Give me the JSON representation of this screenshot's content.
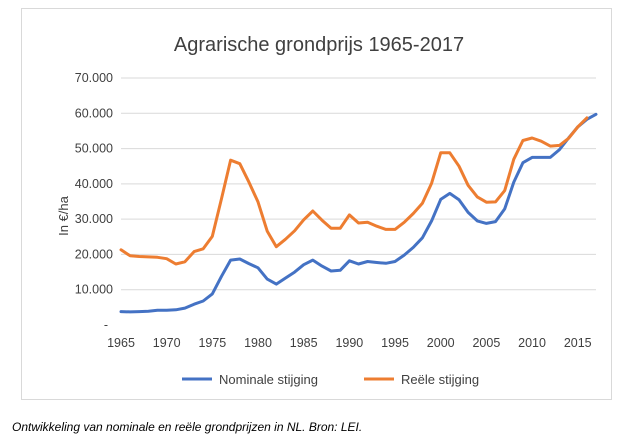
{
  "caption": "Ontwikkeling van nominale en reële grondprijzen in NL. Bron: LEI.",
  "chart_data": {
    "type": "line",
    "title": "Agrarische grondprijs 1965-2017",
    "xlabel": "",
    "ylabel": "In €/ha",
    "xlim": [
      1965,
      2017
    ],
    "ylim": [
      0,
      70000
    ],
    "x_ticks": [
      "1965",
      "1970",
      "1975",
      "1980",
      "1985",
      "1990",
      "1995",
      "2000",
      "2005",
      "2010",
      "2015"
    ],
    "x_tick_values": [
      1965,
      1970,
      1975,
      1980,
      1985,
      1990,
      1995,
      2000,
      2005,
      2010,
      2015
    ],
    "y_ticks": [
      "-",
      "10.000",
      "20.000",
      "30.000",
      "40.000",
      "50.000",
      "60.000",
      "70.000"
    ],
    "y_tick_values": [
      0,
      10000,
      20000,
      30000,
      40000,
      50000,
      60000,
      70000
    ],
    "grid": "horizontal",
    "legend_position": "bottom",
    "x": [
      1965,
      1966,
      1967,
      1968,
      1969,
      1970,
      1971,
      1972,
      1973,
      1974,
      1975,
      1976,
      1977,
      1978,
      1979,
      1980,
      1981,
      1982,
      1983,
      1984,
      1985,
      1986,
      1987,
      1988,
      1989,
      1990,
      1991,
      1992,
      1993,
      1994,
      1995,
      1996,
      1997,
      1998,
      1999,
      2000,
      2001,
      2002,
      2003,
      2004,
      2005,
      2006,
      2007,
      2008,
      2009,
      2010,
      2011,
      2012,
      2013,
      2014,
      2015,
      2016,
      2017
    ],
    "series": [
      {
        "name": "Nominale stijging",
        "color": "#4472c4",
        "values": [
          3800,
          3700,
          3800,
          3900,
          4200,
          4200,
          4300,
          4800,
          5900,
          6800,
          8800,
          13800,
          18400,
          18700,
          17400,
          16200,
          13000,
          11600,
          13300,
          15000,
          17100,
          18400,
          16700,
          15300,
          15500,
          18200,
          17300,
          18000,
          17700,
          17500,
          18000,
          19800,
          22000,
          24700,
          29500,
          35600,
          37300,
          35500,
          31900,
          29500,
          28800,
          29300,
          32900,
          40500,
          46000,
          47500,
          47500,
          47500,
          49700,
          53000,
          56100,
          58300,
          59700
        ]
      },
      {
        "name": "Reële stijging",
        "color": "#ed7d31",
        "values": [
          21300,
          19600,
          19400,
          19300,
          19200,
          18800,
          17300,
          17900,
          20800,
          21600,
          25100,
          35800,
          46700,
          45700,
          40500,
          34900,
          26600,
          22200,
          24300,
          26700,
          29800,
          32300,
          29700,
          27400,
          27400,
          31200,
          28900,
          29100,
          28000,
          27100,
          27100,
          29100,
          31600,
          34500,
          40200,
          48800,
          48800,
          45000,
          39600,
          36300,
          34800,
          34900,
          38100,
          47000,
          52300,
          53000,
          52100,
          50700,
          50900,
          52900,
          56100,
          58700,
          null
        ]
      }
    ]
  }
}
